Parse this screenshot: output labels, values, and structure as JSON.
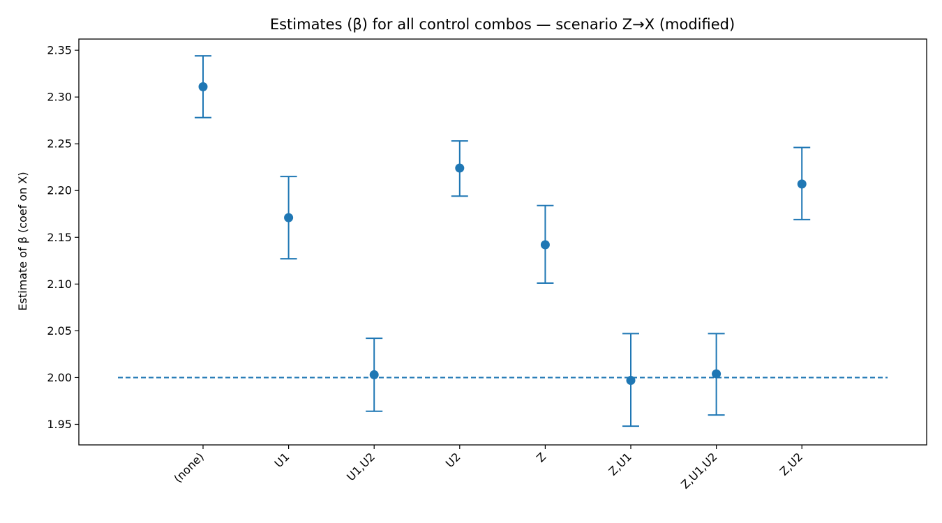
{
  "chart_data": {
    "type": "scatter",
    "title": "Estimates (β) for all control combos — scenario Z→X (modified)",
    "xlabel": "",
    "ylabel": "Estimate of β (coef on X)",
    "categories": [
      "(none)",
      "U1",
      "U1,U2",
      "U2",
      "Z",
      "Z,U1",
      "Z,U1,U2",
      "Z,U2"
    ],
    "values": [
      2.311,
      2.171,
      2.003,
      2.224,
      2.142,
      1.997,
      2.004,
      2.207
    ],
    "ci_lower": [
      2.278,
      2.127,
      1.964,
      2.194,
      2.101,
      1.948,
      1.96,
      2.169
    ],
    "ci_upper": [
      2.344,
      2.215,
      2.042,
      2.253,
      2.184,
      2.047,
      2.047,
      2.246
    ],
    "reference_line": 2.0,
    "ylim": [
      1.928,
      2.362
    ],
    "yticks": [
      "1.95",
      "2.00",
      "2.05",
      "2.10",
      "2.15",
      "2.20",
      "2.25",
      "2.30",
      "2.35"
    ],
    "grid": false,
    "color": "#1f77b4"
  }
}
